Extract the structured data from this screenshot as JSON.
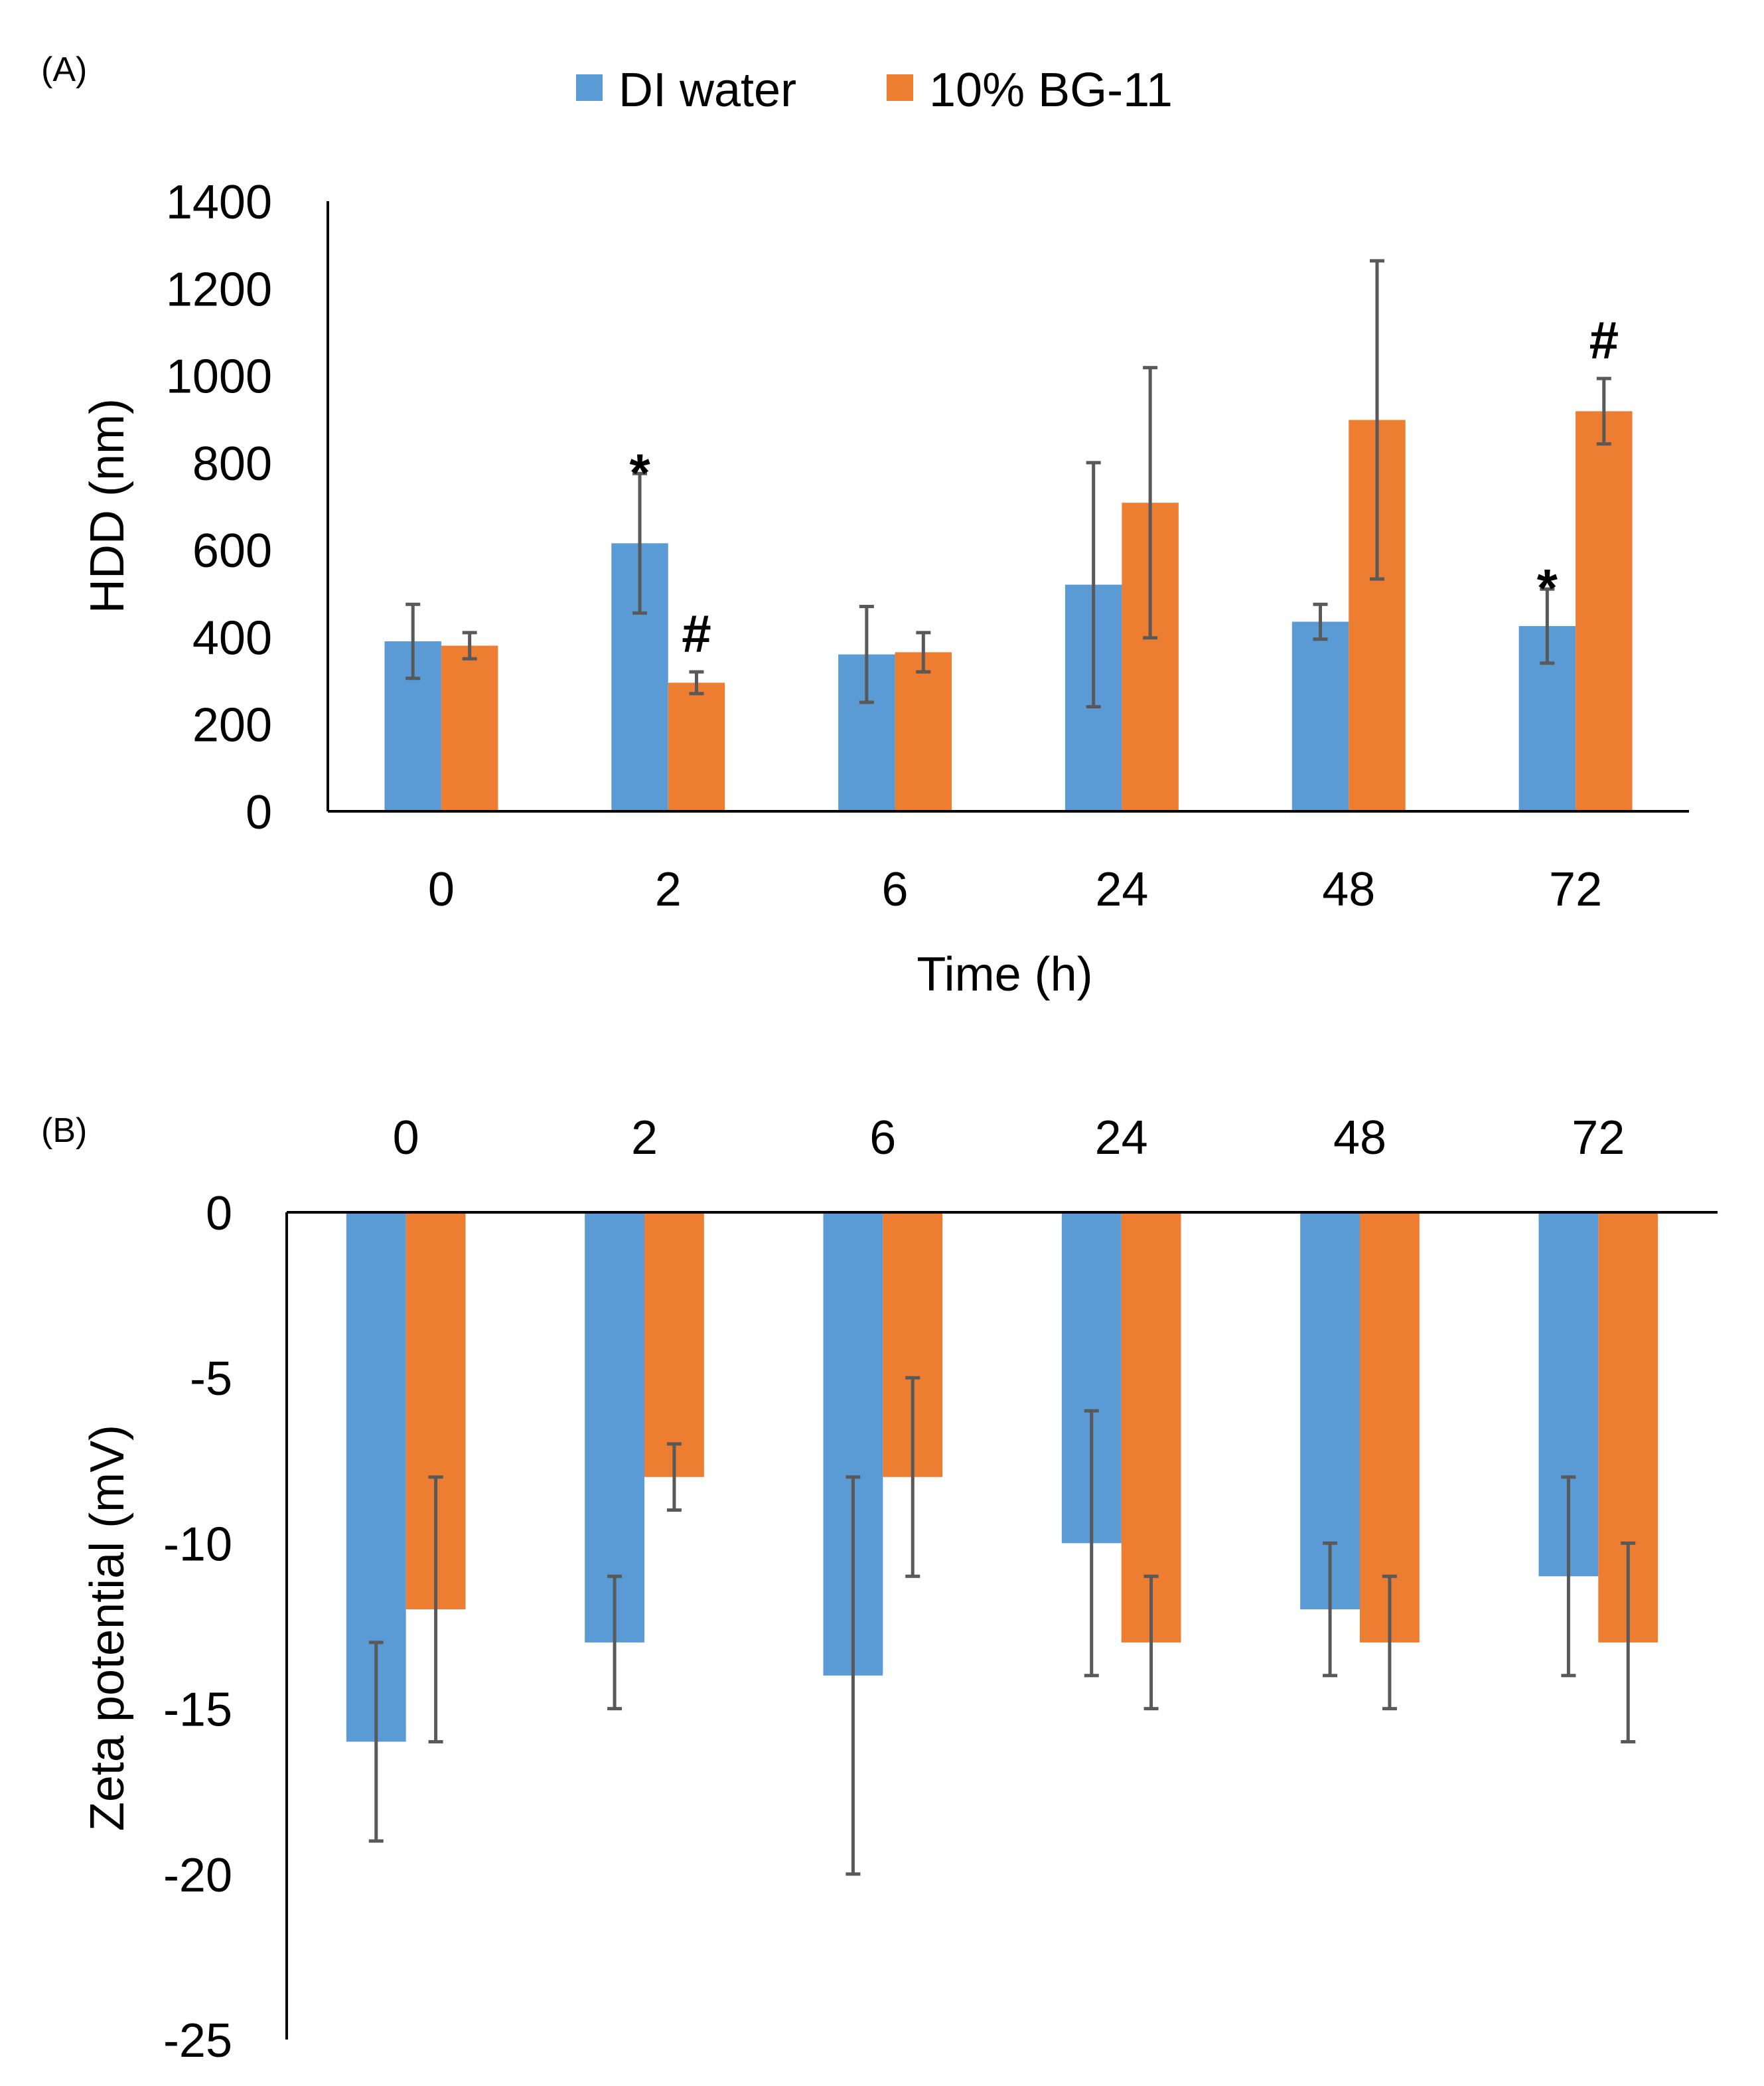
{
  "chart_data": [
    {
      "panel_label": "(A)",
      "type": "bar",
      "categories": [
        "0",
        "2",
        "6",
        "24",
        "48",
        "72"
      ],
      "series": [
        {
          "name": "DI water",
          "color": "#5B9BD5",
          "values": [
            390,
            615,
            360,
            520,
            435,
            425
          ],
          "errors": [
            85,
            160,
            110,
            280,
            40,
            85
          ]
        },
        {
          "name": "10% BG-11",
          "color": "#ED7D31",
          "values": [
            380,
            295,
            365,
            708,
            898,
            918
          ],
          "errors": [
            30,
            25,
            45,
            310,
            365,
            75
          ]
        }
      ],
      "significance": [
        {
          "series": 0,
          "category": 1,
          "mark": "*"
        },
        {
          "series": 1,
          "category": 1,
          "mark": "#"
        },
        {
          "series": 0,
          "category": 5,
          "mark": "*"
        },
        {
          "series": 1,
          "category": 5,
          "mark": "#"
        }
      ],
      "ylim": [
        0,
        1400
      ],
      "yticks": [
        0,
        200,
        400,
        600,
        800,
        1000,
        1200,
        1400
      ],
      "ytick_labels": [
        "0",
        "200",
        "400",
        "600",
        "800",
        "1000",
        "1200",
        "1400"
      ],
      "xlabel": "Time (h)",
      "ylabel": "HDD (nm)",
      "legend": [
        "DI water",
        "10% BG-11"
      ],
      "legend_position": "top"
    },
    {
      "panel_label": "(B)",
      "type": "bar",
      "categories": [
        "0",
        "2",
        "6",
        "24",
        "48",
        "72"
      ],
      "series": [
        {
          "name": "DI water",
          "color": "#5B9BD5",
          "values": [
            -16,
            -13,
            -14,
            -10,
            -12,
            -11
          ],
          "errors": [
            3,
            2,
            6,
            4,
            2,
            3
          ]
        },
        {
          "name": "10% BG-11",
          "color": "#ED7D31",
          "values": [
            -12,
            -8,
            -8,
            -13,
            -13,
            -13
          ],
          "errors": [
            4,
            1,
            3,
            2,
            2,
            3
          ]
        }
      ],
      "ylim": [
        -25,
        0
      ],
      "yticks": [
        0,
        -5,
        -10,
        -15,
        -20,
        -25
      ],
      "ytick_labels": [
        "0",
        "-5",
        "-10",
        "-15",
        "-20",
        "-25"
      ],
      "xlabel": "",
      "ylabel": "Zeta potential (mV)",
      "category_axis_position": "top"
    }
  ]
}
